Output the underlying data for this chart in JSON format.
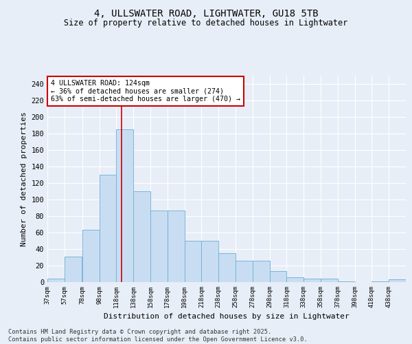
{
  "title_line1": "4, ULLSWATER ROAD, LIGHTWATER, GU18 5TB",
  "title_line2": "Size of property relative to detached houses in Lightwater",
  "xlabel": "Distribution of detached houses by size in Lightwater",
  "ylabel": "Number of detached properties",
  "bar_color": "#c9ddf2",
  "bar_edge_color": "#6baed6",
  "bg_color": "#e8eef7",
  "grid_color": "#ffffff",
  "vline_x": 124,
  "vline_color": "#cc0000",
  "annotation_text": "4 ULLSWATER ROAD: 124sqm\n← 36% of detached houses are smaller (274)\n63% of semi-detached houses are larger (470) →",
  "annotation_box_color": "#ffffff",
  "annotation_box_edge_color": "#cc0000",
  "bins_left": [
    37,
    57,
    78,
    98,
    118,
    138,
    158,
    178,
    198,
    218,
    238,
    258,
    278,
    298,
    318,
    338,
    358,
    378,
    398,
    418,
    438
  ],
  "bin_width": 20,
  "bar_heights": [
    4,
    31,
    63,
    130,
    185,
    110,
    87,
    87,
    50,
    50,
    35,
    26,
    26,
    13,
    6,
    4,
    4,
    1,
    0,
    1,
    3
  ],
  "ylim": [
    0,
    250
  ],
  "yticks": [
    0,
    20,
    40,
    60,
    80,
    100,
    120,
    140,
    160,
    180,
    200,
    220,
    240
  ],
  "xtick_labels": [
    "37sqm",
    "57sqm",
    "78sqm",
    "98sqm",
    "118sqm",
    "138sqm",
    "158sqm",
    "178sqm",
    "198sqm",
    "218sqm",
    "238sqm",
    "258sqm",
    "278sqm",
    "298sqm",
    "318sqm",
    "338sqm",
    "358sqm",
    "378sqm",
    "398sqm",
    "418sqm",
    "438sqm"
  ],
  "footnote_line1": "Contains HM Land Registry data © Crown copyright and database right 2025.",
  "footnote_line2": "Contains public sector information licensed under the Open Government Licence v3.0."
}
